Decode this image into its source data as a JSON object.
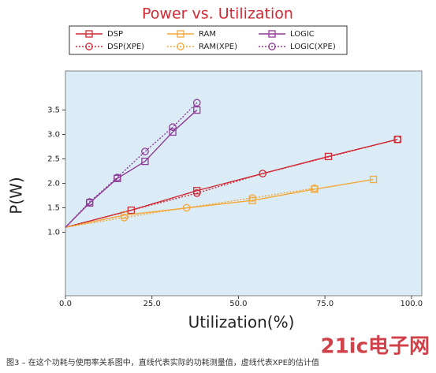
{
  "chart_data": {
    "type": "line",
    "title": "Power vs. Utilization",
    "x_label": "Utilization(%)",
    "y_label": "P(W)",
    "caption": "图3 – 在这个功耗与使用率关系图中，直线代表实际的功耗测量值，虚线代表XPE的估计值",
    "logo": "21ic电子网",
    "xlim": [
      0,
      103
    ],
    "ylim": [
      -0.3,
      4.3
    ],
    "xticks": [
      {
        "value": 0,
        "label": "0.0"
      },
      {
        "value": 25,
        "label": "25.0"
      },
      {
        "value": 50,
        "label": "50.0"
      },
      {
        "value": 75,
        "label": "75.0"
      },
      {
        "value": 100,
        "label": "100.0"
      }
    ],
    "yticks": [
      {
        "value": 1,
        "label": "1.0"
      },
      {
        "value": 1.5,
        "label": "1.5"
      },
      {
        "value": 2,
        "label": "2.0"
      },
      {
        "value": 2.5,
        "label": "2.5"
      },
      {
        "value": 3,
        "label": "3.0"
      },
      {
        "value": 3.5,
        "label": "3.5"
      }
    ],
    "background": "#dcecf7",
    "series": [
      {
        "name": "DSP",
        "color": "#d02a34",
        "marker": "square",
        "dashed": false,
        "x": [
          0,
          19,
          38,
          76,
          96
        ],
        "values": [
          1.1,
          1.45,
          1.85,
          2.55,
          2.9
        ]
      },
      {
        "name": "RAM",
        "color": "#f2a93b",
        "marker": "square",
        "dashed": false,
        "x": [
          0,
          17,
          54,
          72,
          89
        ],
        "values": [
          1.1,
          1.35,
          1.65,
          1.88,
          2.08
        ]
      },
      {
        "name": "LOGIC",
        "color": "#8e3a96",
        "marker": "square",
        "dashed": false,
        "x": [
          0,
          7,
          15,
          23,
          31,
          38
        ],
        "values": [
          1.1,
          1.6,
          2.1,
          2.45,
          3.05,
          3.5
        ]
      },
      {
        "name": "DSP(XPE)",
        "color": "#d02a34",
        "marker": "circle",
        "dashed": true,
        "x": [
          0,
          38,
          57,
          96
        ],
        "values": [
          1.1,
          1.8,
          2.2,
          2.9
        ]
      },
      {
        "name": "RAM(XPE)",
        "color": "#f2a93b",
        "marker": "circle",
        "dashed": true,
        "x": [
          0,
          17,
          35,
          54,
          72
        ],
        "values": [
          1.1,
          1.3,
          1.5,
          1.7,
          1.9
        ]
      },
      {
        "name": "LOGIC(XPE)",
        "color": "#8e3a96",
        "marker": "circle",
        "dashed": true,
        "x": [
          0,
          7,
          15,
          23,
          31,
          38
        ],
        "values": [
          1.1,
          1.62,
          2.12,
          2.65,
          3.15,
          3.65
        ]
      }
    ]
  }
}
